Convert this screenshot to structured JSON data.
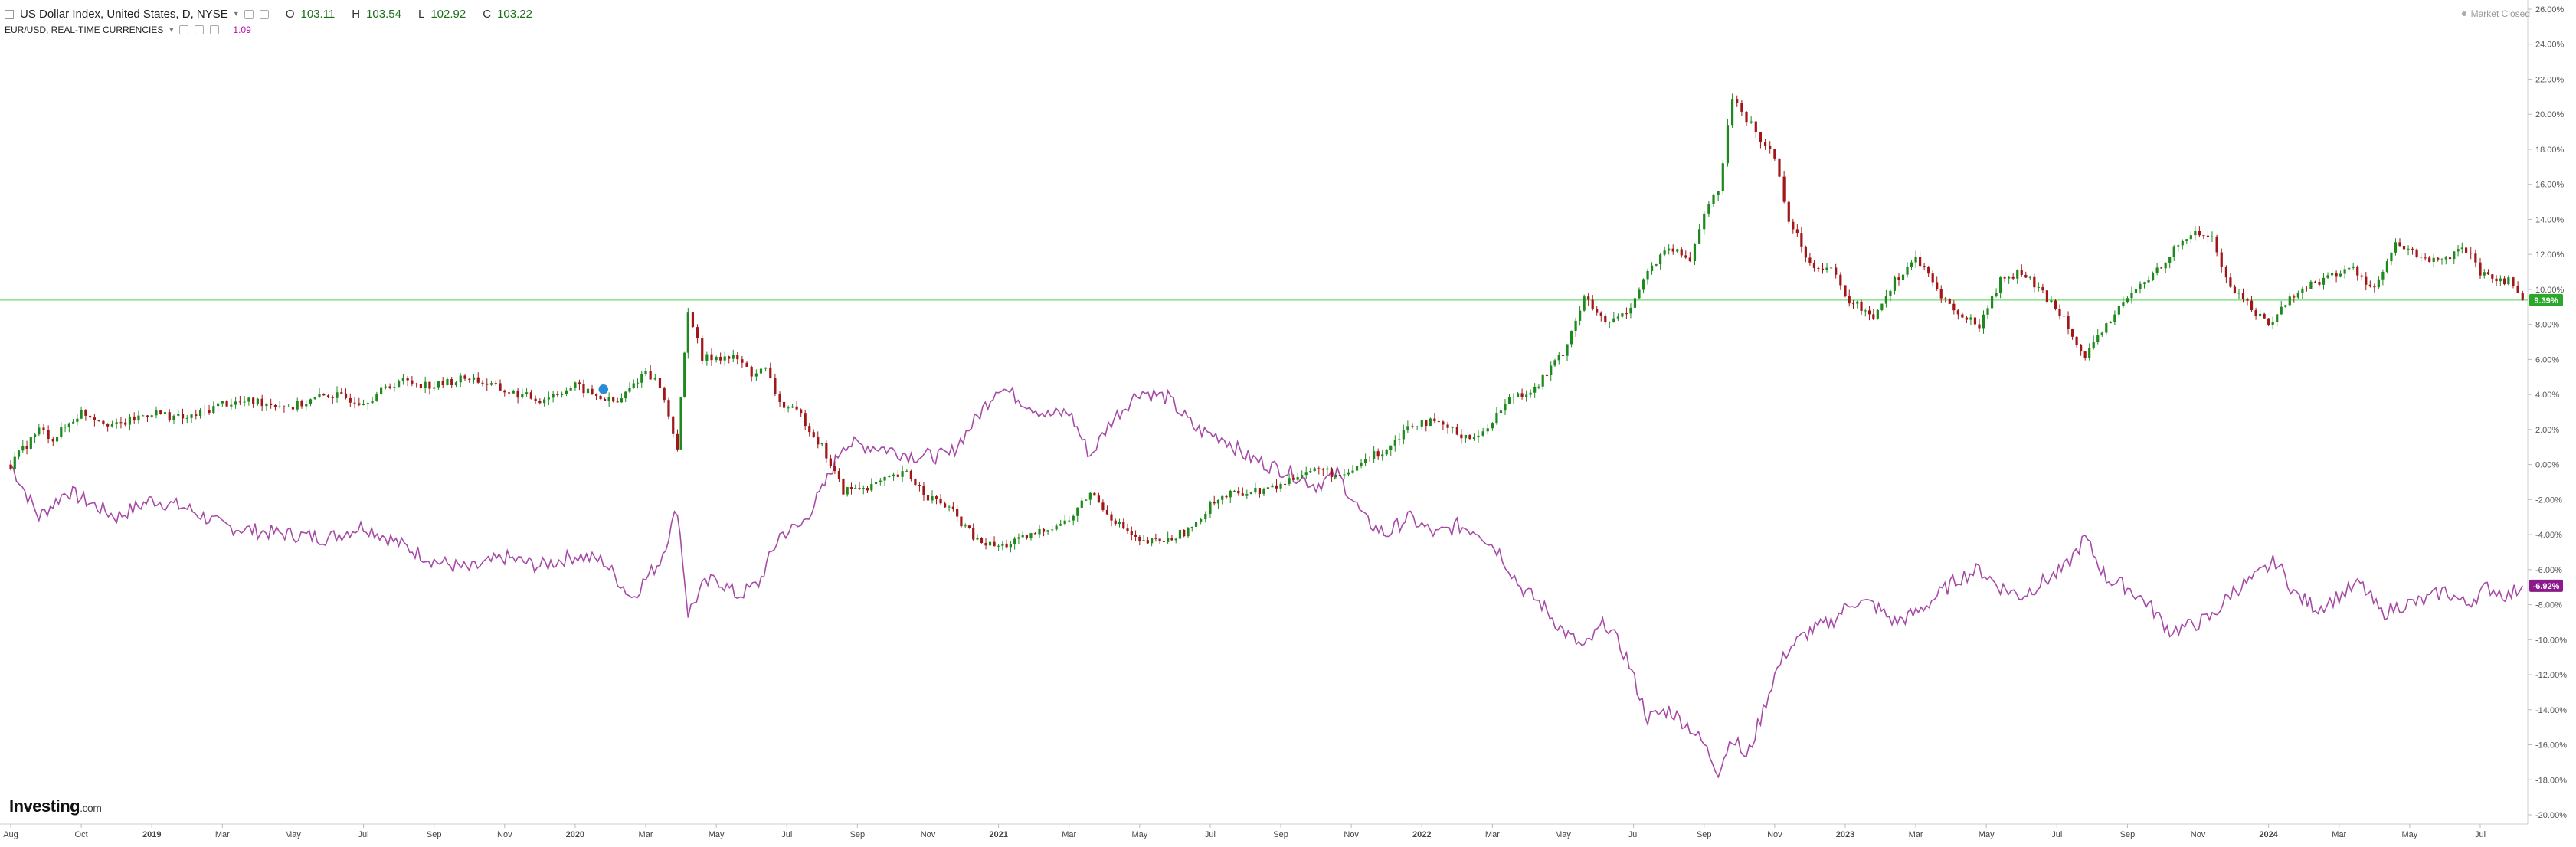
{
  "legend": {
    "title": "US Dollar Index, United States, D, NYSE",
    "open_label": "O",
    "open_value": "103.11",
    "high_label": "H",
    "high_value": "103.54",
    "low_label": "L",
    "low_value": "102.92",
    "close_label": "C",
    "close_value": "103.22",
    "overlay_title": "EUR/USD, REAL-TIME CURRENCIES",
    "overlay_value": "1.09"
  },
  "status": {
    "text": "Market Closed"
  },
  "logo": {
    "text": "Investing",
    "suffix": ".com"
  },
  "colors": {
    "up": "#1e8a1e",
    "down": "#a11616",
    "overlay": "#a64aa6",
    "last_price_line": "#6fdc6f",
    "last_price_tag": "#2ba82b",
    "overlay_tag": "#8b1b8b"
  },
  "icons": [
    "menu-icon",
    "settings-icon",
    "eye-icon",
    "close-icon",
    "status-dot-icon",
    "event-marker-icon"
  ],
  "chart_data": {
    "type": "line",
    "y_unit": "%",
    "ylim": [
      -20,
      26
    ],
    "y_ticks": [
      "26.00%",
      "24.00%",
      "22.00%",
      "20.00%",
      "18.00%",
      "16.00%",
      "14.00%",
      "12.00%",
      "10.00%",
      "8.00%",
      "6.00%",
      "4.00%",
      "2.00%",
      "0.00%",
      "-2.00%",
      "-4.00%",
      "-6.00%",
      "-8.00%",
      "-10.00%",
      "-12.00%",
      "-14.00%",
      "-16.00%",
      "-18.00%",
      "-20.00%"
    ],
    "x_ticks": [
      "Aug",
      "Oct",
      "2019",
      "Mar",
      "May",
      "Jul",
      "Sep",
      "Nov",
      "2020",
      "Mar",
      "May",
      "Jul",
      "Sep",
      "Nov",
      "2021",
      "Mar",
      "May",
      "Jul",
      "Sep",
      "Nov",
      "2022",
      "Mar",
      "May",
      "Jul",
      "Sep",
      "Nov",
      "2023",
      "Mar",
      "May",
      "Jul",
      "Sep",
      "Nov",
      "2024",
      "Mar",
      "May",
      "Jul"
    ],
    "bold_x_ticks": [
      "2019",
      "2020",
      "2021",
      "2022",
      "2023",
      "2024"
    ],
    "grid": false,
    "series": [
      {
        "name": "US Dollar Index",
        "style": "candlestick",
        "last_value_label": "9.39%",
        "points": [
          [
            0,
            0
          ],
          [
            0.4,
            2
          ],
          [
            0.6,
            1.5
          ],
          [
            1,
            3
          ],
          [
            1.5,
            2.2
          ],
          [
            2,
            3
          ],
          [
            2.5,
            2.6
          ],
          [
            3,
            3.5
          ],
          [
            3.5,
            3.6
          ],
          [
            4,
            3.3
          ],
          [
            4.5,
            4
          ],
          [
            5,
            3.6
          ],
          [
            5.5,
            4.8
          ],
          [
            6,
            4.5
          ],
          [
            6.5,
            5
          ],
          [
            7,
            4.2
          ],
          [
            7.5,
            3.7
          ],
          [
            8,
            4.5
          ],
          [
            8.3,
            3.9
          ],
          [
            8.6,
            3.5
          ],
          [
            9,
            5.4
          ],
          [
            9.2,
            4.5
          ],
          [
            9.45,
            1
          ],
          [
            9.6,
            8.9
          ],
          [
            9.8,
            6
          ],
          [
            10,
            6.2
          ],
          [
            10.3,
            6
          ],
          [
            10.5,
            5.2
          ],
          [
            10.7,
            5.4
          ],
          [
            10.9,
            3.5
          ],
          [
            11.2,
            2.8
          ],
          [
            11.5,
            1
          ],
          [
            11.8,
            -1.5
          ],
          [
            12.2,
            -1.2
          ],
          [
            12.7,
            -0.5
          ],
          [
            13,
            -1.8
          ],
          [
            13.3,
            -2.5
          ],
          [
            13.7,
            -4.4
          ],
          [
            14,
            -4.7
          ],
          [
            14.4,
            -4.2
          ],
          [
            14.7,
            -3.6
          ],
          [
            15,
            -3.2
          ],
          [
            15.3,
            -1.6
          ],
          [
            15.6,
            -3
          ],
          [
            16,
            -4.5
          ],
          [
            16.4,
            -4.3
          ],
          [
            16.8,
            -3.5
          ],
          [
            17,
            -2.1
          ],
          [
            17.4,
            -1.6
          ],
          [
            17.7,
            -1.5
          ],
          [
            18,
            -1.2
          ],
          [
            18.3,
            -0.4
          ],
          [
            18.6,
            -0.3
          ],
          [
            18.9,
            -0.8
          ],
          [
            19.2,
            0.3
          ],
          [
            19.5,
            0.9
          ],
          [
            19.8,
            2.2
          ],
          [
            20,
            2.5
          ],
          [
            20.3,
            2.2
          ],
          [
            20.5,
            1.8
          ],
          [
            20.8,
            1.5
          ],
          [
            21,
            2.6
          ],
          [
            21.3,
            4
          ],
          [
            21.6,
            4.3
          ],
          [
            22,
            6.4
          ],
          [
            22.3,
            9.5
          ],
          [
            22.6,
            8
          ],
          [
            22.9,
            8.7
          ],
          [
            23.2,
            11
          ],
          [
            23.5,
            12.3
          ],
          [
            23.8,
            11.7
          ],
          [
            24,
            14.5
          ],
          [
            24.2,
            15.5
          ],
          [
            24.4,
            21
          ],
          [
            24.6,
            19.8
          ],
          [
            24.8,
            18.5
          ],
          [
            25,
            17.6
          ],
          [
            25.2,
            14
          ],
          [
            25.5,
            11.5
          ],
          [
            25.8,
            11.2
          ],
          [
            26,
            9.5
          ],
          [
            26.4,
            8.5
          ],
          [
            26.7,
            10.5
          ],
          [
            27,
            11.8
          ],
          [
            27.3,
            10
          ],
          [
            27.6,
            8.5
          ],
          [
            27.9,
            8
          ],
          [
            28.2,
            10.5
          ],
          [
            28.5,
            11
          ],
          [
            28.8,
            9.7
          ],
          [
            29.1,
            8.5
          ],
          [
            29.4,
            6
          ],
          [
            29.7,
            8
          ],
          [
            30,
            9.5
          ],
          [
            30.3,
            10.6
          ],
          [
            30.6,
            12
          ],
          [
            30.9,
            13.2
          ],
          [
            31.2,
            13
          ],
          [
            31.4,
            10.5
          ],
          [
            31.7,
            9.2
          ],
          [
            32,
            8
          ],
          [
            32.3,
            9.5
          ],
          [
            32.6,
            10.3
          ],
          [
            32.9,
            10.8
          ],
          [
            33.2,
            11.2
          ],
          [
            33.5,
            10
          ],
          [
            33.8,
            12.5
          ],
          [
            34.1,
            12
          ],
          [
            34.4,
            11.5
          ],
          [
            34.8,
            12.3
          ],
          [
            35,
            10.8
          ],
          [
            35.4,
            10.5
          ],
          [
            35.6,
            9.39
          ]
        ]
      },
      {
        "name": "EUR/USD",
        "style": "line",
        "last_value_label": "-6.92%",
        "points": [
          [
            0,
            0
          ],
          [
            0.4,
            -3
          ],
          [
            0.8,
            -1.5
          ],
          [
            1.5,
            -3
          ],
          [
            2,
            -2
          ],
          [
            2.5,
            -2.5
          ],
          [
            3,
            -3.5
          ],
          [
            3.5,
            -3.8
          ],
          [
            4,
            -4
          ],
          [
            4.5,
            -4.2
          ],
          [
            5,
            -3.5
          ],
          [
            5.5,
            -4.5
          ],
          [
            6,
            -5.5
          ],
          [
            6.5,
            -6
          ],
          [
            7,
            -5.3
          ],
          [
            7.5,
            -5.8
          ],
          [
            8,
            -5.2
          ],
          [
            8.4,
            -5.5
          ],
          [
            8.8,
            -7.6
          ],
          [
            9.2,
            -5.5
          ],
          [
            9.45,
            -2.5
          ],
          [
            9.6,
            -8.5
          ],
          [
            9.8,
            -7
          ],
          [
            10,
            -6.5
          ],
          [
            10.3,
            -7.5
          ],
          [
            10.6,
            -6.8
          ],
          [
            10.9,
            -4
          ],
          [
            11.2,
            -3.5
          ],
          [
            11.5,
            -1.5
          ],
          [
            11.8,
            1.2
          ],
          [
            12.3,
            1
          ],
          [
            12.8,
            0.5
          ],
          [
            13.3,
            0.5
          ],
          [
            13.7,
            2.7
          ],
          [
            14,
            4.5
          ],
          [
            14.4,
            3.5
          ],
          [
            14.7,
            2.8
          ],
          [
            15,
            3
          ],
          [
            15.3,
            0.5
          ],
          [
            15.6,
            2.5
          ],
          [
            16,
            4.2
          ],
          [
            16.4,
            3.8
          ],
          [
            16.8,
            2
          ],
          [
            17.2,
            1.5
          ],
          [
            17.5,
            0.5
          ],
          [
            17.8,
            0
          ],
          [
            18.1,
            -0.4
          ],
          [
            18.5,
            -1.2
          ],
          [
            18.8,
            -0.5
          ],
          [
            19.2,
            -3.2
          ],
          [
            19.5,
            -4
          ],
          [
            19.8,
            -3
          ],
          [
            20.2,
            -4
          ],
          [
            20.5,
            -3.5
          ],
          [
            20.8,
            -3.8
          ],
          [
            21.1,
            -5
          ],
          [
            21.4,
            -7
          ],
          [
            21.7,
            -8
          ],
          [
            22,
            -9.5
          ],
          [
            22.3,
            -10.5
          ],
          [
            22.6,
            -9
          ],
          [
            22.9,
            -11
          ],
          [
            23.2,
            -14.5
          ],
          [
            23.5,
            -14
          ],
          [
            23.8,
            -15
          ],
          [
            24,
            -16
          ],
          [
            24.2,
            -17.5
          ],
          [
            24.4,
            -15.5
          ],
          [
            24.6,
            -16.8
          ],
          [
            24.8,
            -14.5
          ],
          [
            25,
            -12
          ],
          [
            25.2,
            -10.5
          ],
          [
            25.5,
            -9.5
          ],
          [
            25.8,
            -9
          ],
          [
            26.1,
            -7.8
          ],
          [
            26.4,
            -8
          ],
          [
            26.7,
            -9
          ],
          [
            27,
            -8.5
          ],
          [
            27.3,
            -7.5
          ],
          [
            27.6,
            -6.5
          ],
          [
            27.9,
            -6
          ],
          [
            28.2,
            -7
          ],
          [
            28.5,
            -7.5
          ],
          [
            28.8,
            -6.7
          ],
          [
            29.1,
            -6
          ],
          [
            29.4,
            -4.2
          ],
          [
            29.7,
            -6.5
          ],
          [
            30,
            -7
          ],
          [
            30.3,
            -8
          ],
          [
            30.6,
            -9.5
          ],
          [
            30.9,
            -9.2
          ],
          [
            31.2,
            -8.7
          ],
          [
            31.5,
            -7.2
          ],
          [
            31.8,
            -6.5
          ],
          [
            32.1,
            -5.5
          ],
          [
            32.4,
            -7.5
          ],
          [
            32.7,
            -8.2
          ],
          [
            33,
            -7.5
          ],
          [
            33.3,
            -6.8
          ],
          [
            33.6,
            -8.5
          ],
          [
            33.9,
            -8
          ],
          [
            34.2,
            -7.8
          ],
          [
            34.5,
            -7.2
          ],
          [
            34.8,
            -8
          ],
          [
            35.1,
            -7
          ],
          [
            35.4,
            -7.5
          ],
          [
            35.6,
            -6.92
          ]
        ]
      }
    ],
    "horizontal_line": 9.39,
    "event_marker": {
      "x": 8.4,
      "y": 4.3,
      "label": "⚑"
    }
  }
}
